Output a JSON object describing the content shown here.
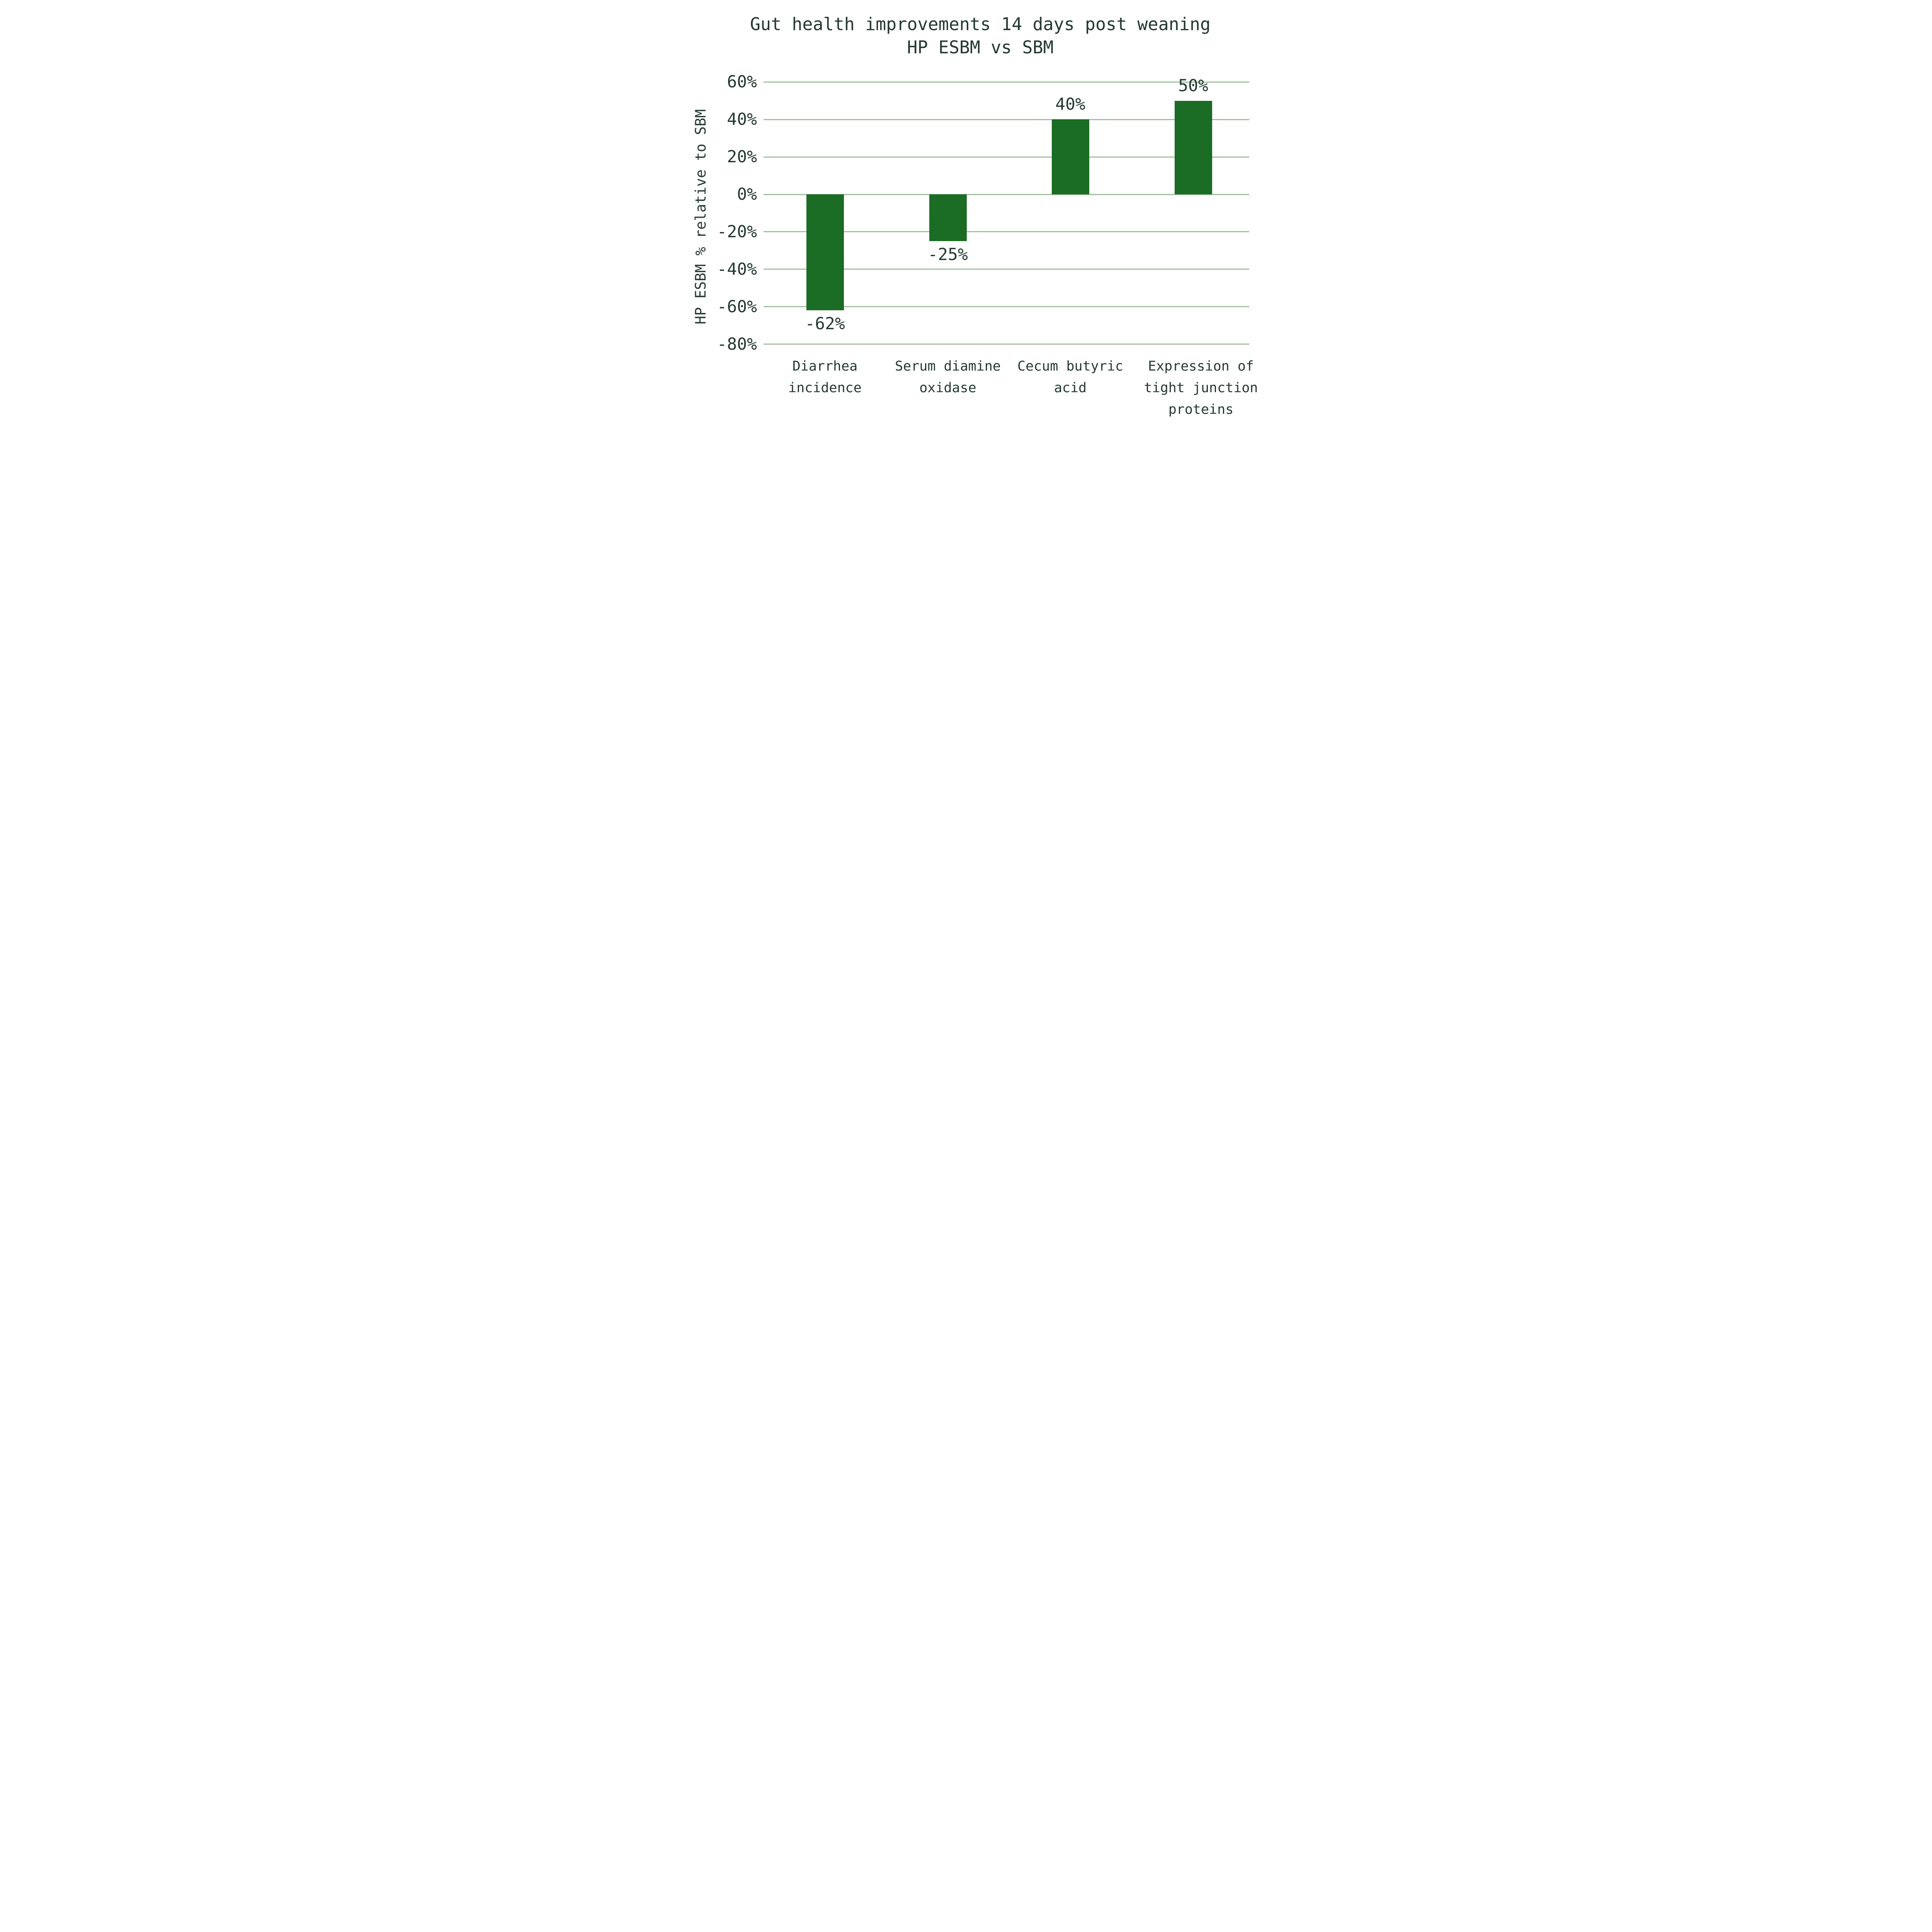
{
  "figure": {
    "title_line1": "Gut health improvements 14 days post weaning",
    "title_line2": "HP ESBM vs SBM"
  },
  "y_axis": {
    "title": "HP ESBM % relative to SBM",
    "tick_labels": [
      "60%",
      "40%",
      "20%",
      "0%",
      "-20%",
      "-40%",
      "-60%",
      "-80%"
    ],
    "tick_values": [
      60,
      40,
      20,
      0,
      -20,
      -40,
      -60,
      -80
    ]
  },
  "chart_data": {
    "type": "bar",
    "title": "Gut health improvements 14 days post weaning",
    "subtitle": "HP ESBM vs SBM",
    "xlabel": "",
    "ylabel": "HP ESBM % relative to SBM",
    "ylim": [
      -80,
      60
    ],
    "ytick_step": 20,
    "grid": "horizontal-only",
    "legend": "none",
    "categories": [
      "Diarrhea incidence",
      "Serum diamine oxidase",
      "Cecum butyric acid",
      "Expression of tight junction proteins"
    ],
    "category_lines": [
      [
        "Diarrhea",
        "incidence"
      ],
      [
        "Serum diamine",
        "oxidase"
      ],
      [
        "Cecum butyric",
        "acid"
      ],
      [
        "Expression of",
        "tight junction",
        "proteins"
      ]
    ],
    "values": [
      -62,
      -25,
      40,
      50
    ],
    "value_labels": [
      "-62%",
      "-25%",
      "40%",
      "50%"
    ]
  },
  "theme": {
    "background": "#ffffff",
    "bar_color": "#1b6c24",
    "grid_color": "#a2c09d",
    "text_color": "#243931"
  }
}
